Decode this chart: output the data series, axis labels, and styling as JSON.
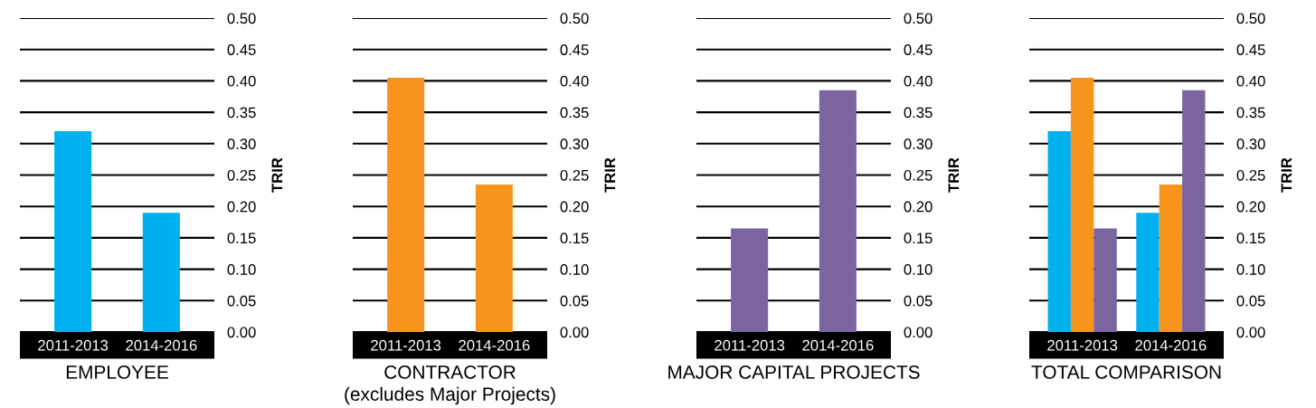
{
  "chart_data": [
    {
      "type": "bar",
      "xlabel": "EMPLOYEE",
      "ylabel": "TRIR",
      "categories": [
        "2011-2013",
        "2014-2016"
      ],
      "series": [
        {
          "color": "#00b0ef",
          "values": [
            0.32,
            0.19
          ]
        }
      ],
      "ylim": [
        0,
        0.5
      ],
      "yticks": [
        {
          "value": 0,
          "label": "0.00"
        },
        {
          "value": 0.05,
          "label": "0.05"
        },
        {
          "value": 0.1,
          "label": "0.10"
        },
        {
          "value": 0.15,
          "label": "0.15"
        },
        {
          "value": 0.2,
          "label": "0.20"
        },
        {
          "value": 0.25,
          "label": "0.25"
        },
        {
          "value": 0.3,
          "label": "0.30"
        },
        {
          "value": 0.35,
          "label": "0.35"
        },
        {
          "value": 0.4,
          "label": "0.40"
        },
        {
          "value": 0.45,
          "label": "0.45"
        },
        {
          "value": 0.5,
          "label": "0.50"
        }
      ],
      "grid": "y"
    },
    {
      "type": "bar",
      "xlabel": "CONTRACTOR",
      "subtitle": "(excludes Major Projects)",
      "ylabel": "TRIR",
      "categories": [
        "2011-2013",
        "2014-2016"
      ],
      "series": [
        {
          "color": "#f7941d",
          "values": [
            0.405,
            0.235
          ]
        }
      ],
      "ylim": [
        0,
        0.5
      ],
      "yticks": [
        {
          "value": 0,
          "label": "0.00"
        },
        {
          "value": 0.05,
          "label": "0.05"
        },
        {
          "value": 0.1,
          "label": "0.10"
        },
        {
          "value": 0.15,
          "label": "0.15"
        },
        {
          "value": 0.2,
          "label": "0.20"
        },
        {
          "value": 0.25,
          "label": "0.25"
        },
        {
          "value": 0.3,
          "label": "0.30"
        },
        {
          "value": 0.35,
          "label": "0.35"
        },
        {
          "value": 0.4,
          "label": "0.40"
        },
        {
          "value": 0.45,
          "label": "0.45"
        },
        {
          "value": 0.5,
          "label": "0.50"
        }
      ],
      "grid": "y"
    },
    {
      "type": "bar",
      "xlabel": "MAJOR CAPITAL PROJECTS",
      "ylabel": "TRIR",
      "categories": [
        "2011-2013",
        "2014-2016"
      ],
      "series": [
        {
          "color": "#7b64a0",
          "values": [
            0.165,
            0.385
          ]
        }
      ],
      "ylim": [
        0,
        0.5
      ],
      "yticks": [
        {
          "value": 0,
          "label": "0.00"
        },
        {
          "value": 0.05,
          "label": "0.05"
        },
        {
          "value": 0.1,
          "label": "0.10"
        },
        {
          "value": 0.15,
          "label": "0.15"
        },
        {
          "value": 0.2,
          "label": "0.20"
        },
        {
          "value": 0.25,
          "label": "0.25"
        },
        {
          "value": 0.3,
          "label": "0.30"
        },
        {
          "value": 0.35,
          "label": "0.35"
        },
        {
          "value": 0.4,
          "label": "0.40"
        },
        {
          "value": 0.45,
          "label": "0.45"
        },
        {
          "value": 0.5,
          "label": "0.50"
        }
      ],
      "grid": "y"
    },
    {
      "type": "bar",
      "xlabel": "TOTAL COMPARISON",
      "ylabel": "TRIR",
      "categories": [
        "2011-2013",
        "2014-2016"
      ],
      "series": [
        {
          "color": "#00b0ef",
          "values": [
            0.32,
            0.19
          ]
        },
        {
          "color": "#f7941d",
          "values": [
            0.405,
            0.235
          ]
        },
        {
          "color": "#7b64a0",
          "values": [
            0.165,
            0.385
          ]
        }
      ],
      "ylim": [
        0,
        0.5
      ],
      "yticks": [
        {
          "value": 0,
          "label": "0.00"
        },
        {
          "value": 0.05,
          "label": "0.05"
        },
        {
          "value": 0.1,
          "label": "0.10"
        },
        {
          "value": 0.15,
          "label": "0.15"
        },
        {
          "value": 0.2,
          "label": "0.20"
        },
        {
          "value": 0.25,
          "label": "0.25"
        },
        {
          "value": 0.3,
          "label": "0.30"
        },
        {
          "value": 0.35,
          "label": "0.35"
        },
        {
          "value": 0.4,
          "label": "0.40"
        },
        {
          "value": 0.45,
          "label": "0.45"
        },
        {
          "value": 0.5,
          "label": "0.50"
        }
      ],
      "grid": "y"
    }
  ]
}
